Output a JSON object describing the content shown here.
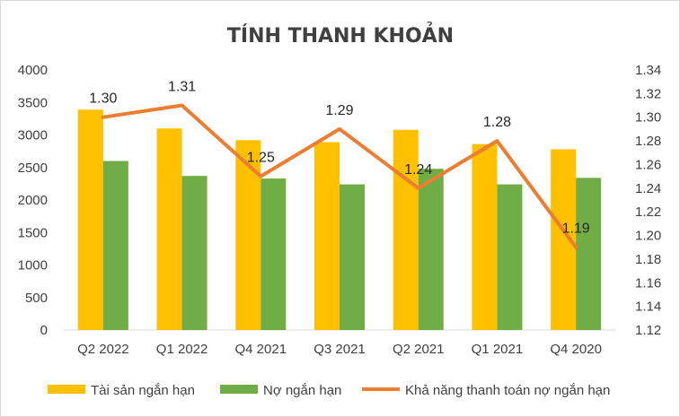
{
  "chart_data": {
    "type": "bar+line",
    "title": "TÍNH THANH KHOẢN",
    "categories": [
      "Q2 2022",
      "Q1 2022",
      "Q4 2021",
      "Q3 2021",
      "Q2 2021",
      "Q1 2021",
      "Q4 2020"
    ],
    "series": [
      {
        "name": "Tài sản ngắn hạn",
        "type": "bar",
        "axis": "left",
        "color": "#FFC000",
        "values": [
          3390,
          3100,
          2920,
          2890,
          3080,
          2860,
          2780
        ]
      },
      {
        "name": "Nợ ngắn hạn",
        "type": "bar",
        "axis": "left",
        "color": "#70AD47",
        "values": [
          2600,
          2370,
          2330,
          2240,
          2480,
          2240,
          2340
        ]
      },
      {
        "name": "Khả năng thanh toán nợ ngắn hạn",
        "type": "line",
        "axis": "right",
        "color": "#ED7D31",
        "values": [
          1.3,
          1.31,
          1.25,
          1.29,
          1.24,
          1.28,
          1.19
        ],
        "labels": [
          "1.30",
          "1.31",
          "1.25",
          "1.29",
          "1.24",
          "1.28",
          "1.19"
        ]
      }
    ],
    "y_left": {
      "min": 0,
      "max": 4000,
      "step": 500,
      "ticks": [
        "0",
        "500",
        "1000",
        "1500",
        "2000",
        "2500",
        "3000",
        "3500",
        "4000"
      ]
    },
    "y_right": {
      "min": 1.12,
      "max": 1.34,
      "step": 0.02,
      "ticks": [
        "1.12",
        "1.14",
        "1.16",
        "1.18",
        "1.20",
        "1.22",
        "1.24",
        "1.26",
        "1.28",
        "1.30",
        "1.32",
        "1.34"
      ]
    },
    "grid": false,
    "legend": "bottom"
  }
}
